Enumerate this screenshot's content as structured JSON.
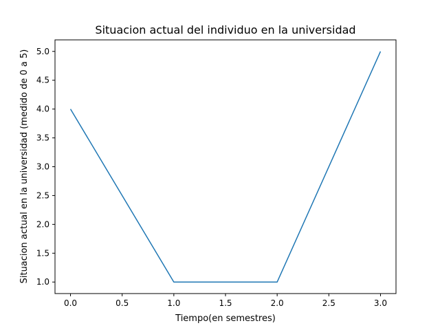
{
  "chart_data": {
    "type": "line",
    "title": "Situacion actual del individuo en la universidad",
    "xlabel": "Tiempo(en semestres)",
    "ylabel": "Situacion actual en la universidad (medido de 0 a 5)",
    "x": [
      0,
      1,
      2,
      3
    ],
    "series": [
      {
        "values": [
          4,
          1,
          1,
          5
        ]
      }
    ],
    "xlim": [
      -0.15,
      3.15
    ],
    "ylim": [
      0.8,
      5.2
    ],
    "xticks": [
      0.0,
      0.5,
      1.0,
      1.5,
      2.0,
      2.5,
      3.0
    ],
    "xtick_labels": [
      "0.0",
      "0.5",
      "1.0",
      "1.5",
      "2.0",
      "2.5",
      "3.0"
    ],
    "yticks": [
      1.0,
      1.5,
      2.0,
      2.5,
      3.0,
      3.5,
      4.0,
      4.5,
      5.0
    ],
    "ytick_labels": [
      "1.0",
      "1.5",
      "2.0",
      "2.5",
      "3.0",
      "3.5",
      "4.0",
      "4.5",
      "5.0"
    ],
    "grid": false,
    "line_color": "#1f77b4"
  }
}
